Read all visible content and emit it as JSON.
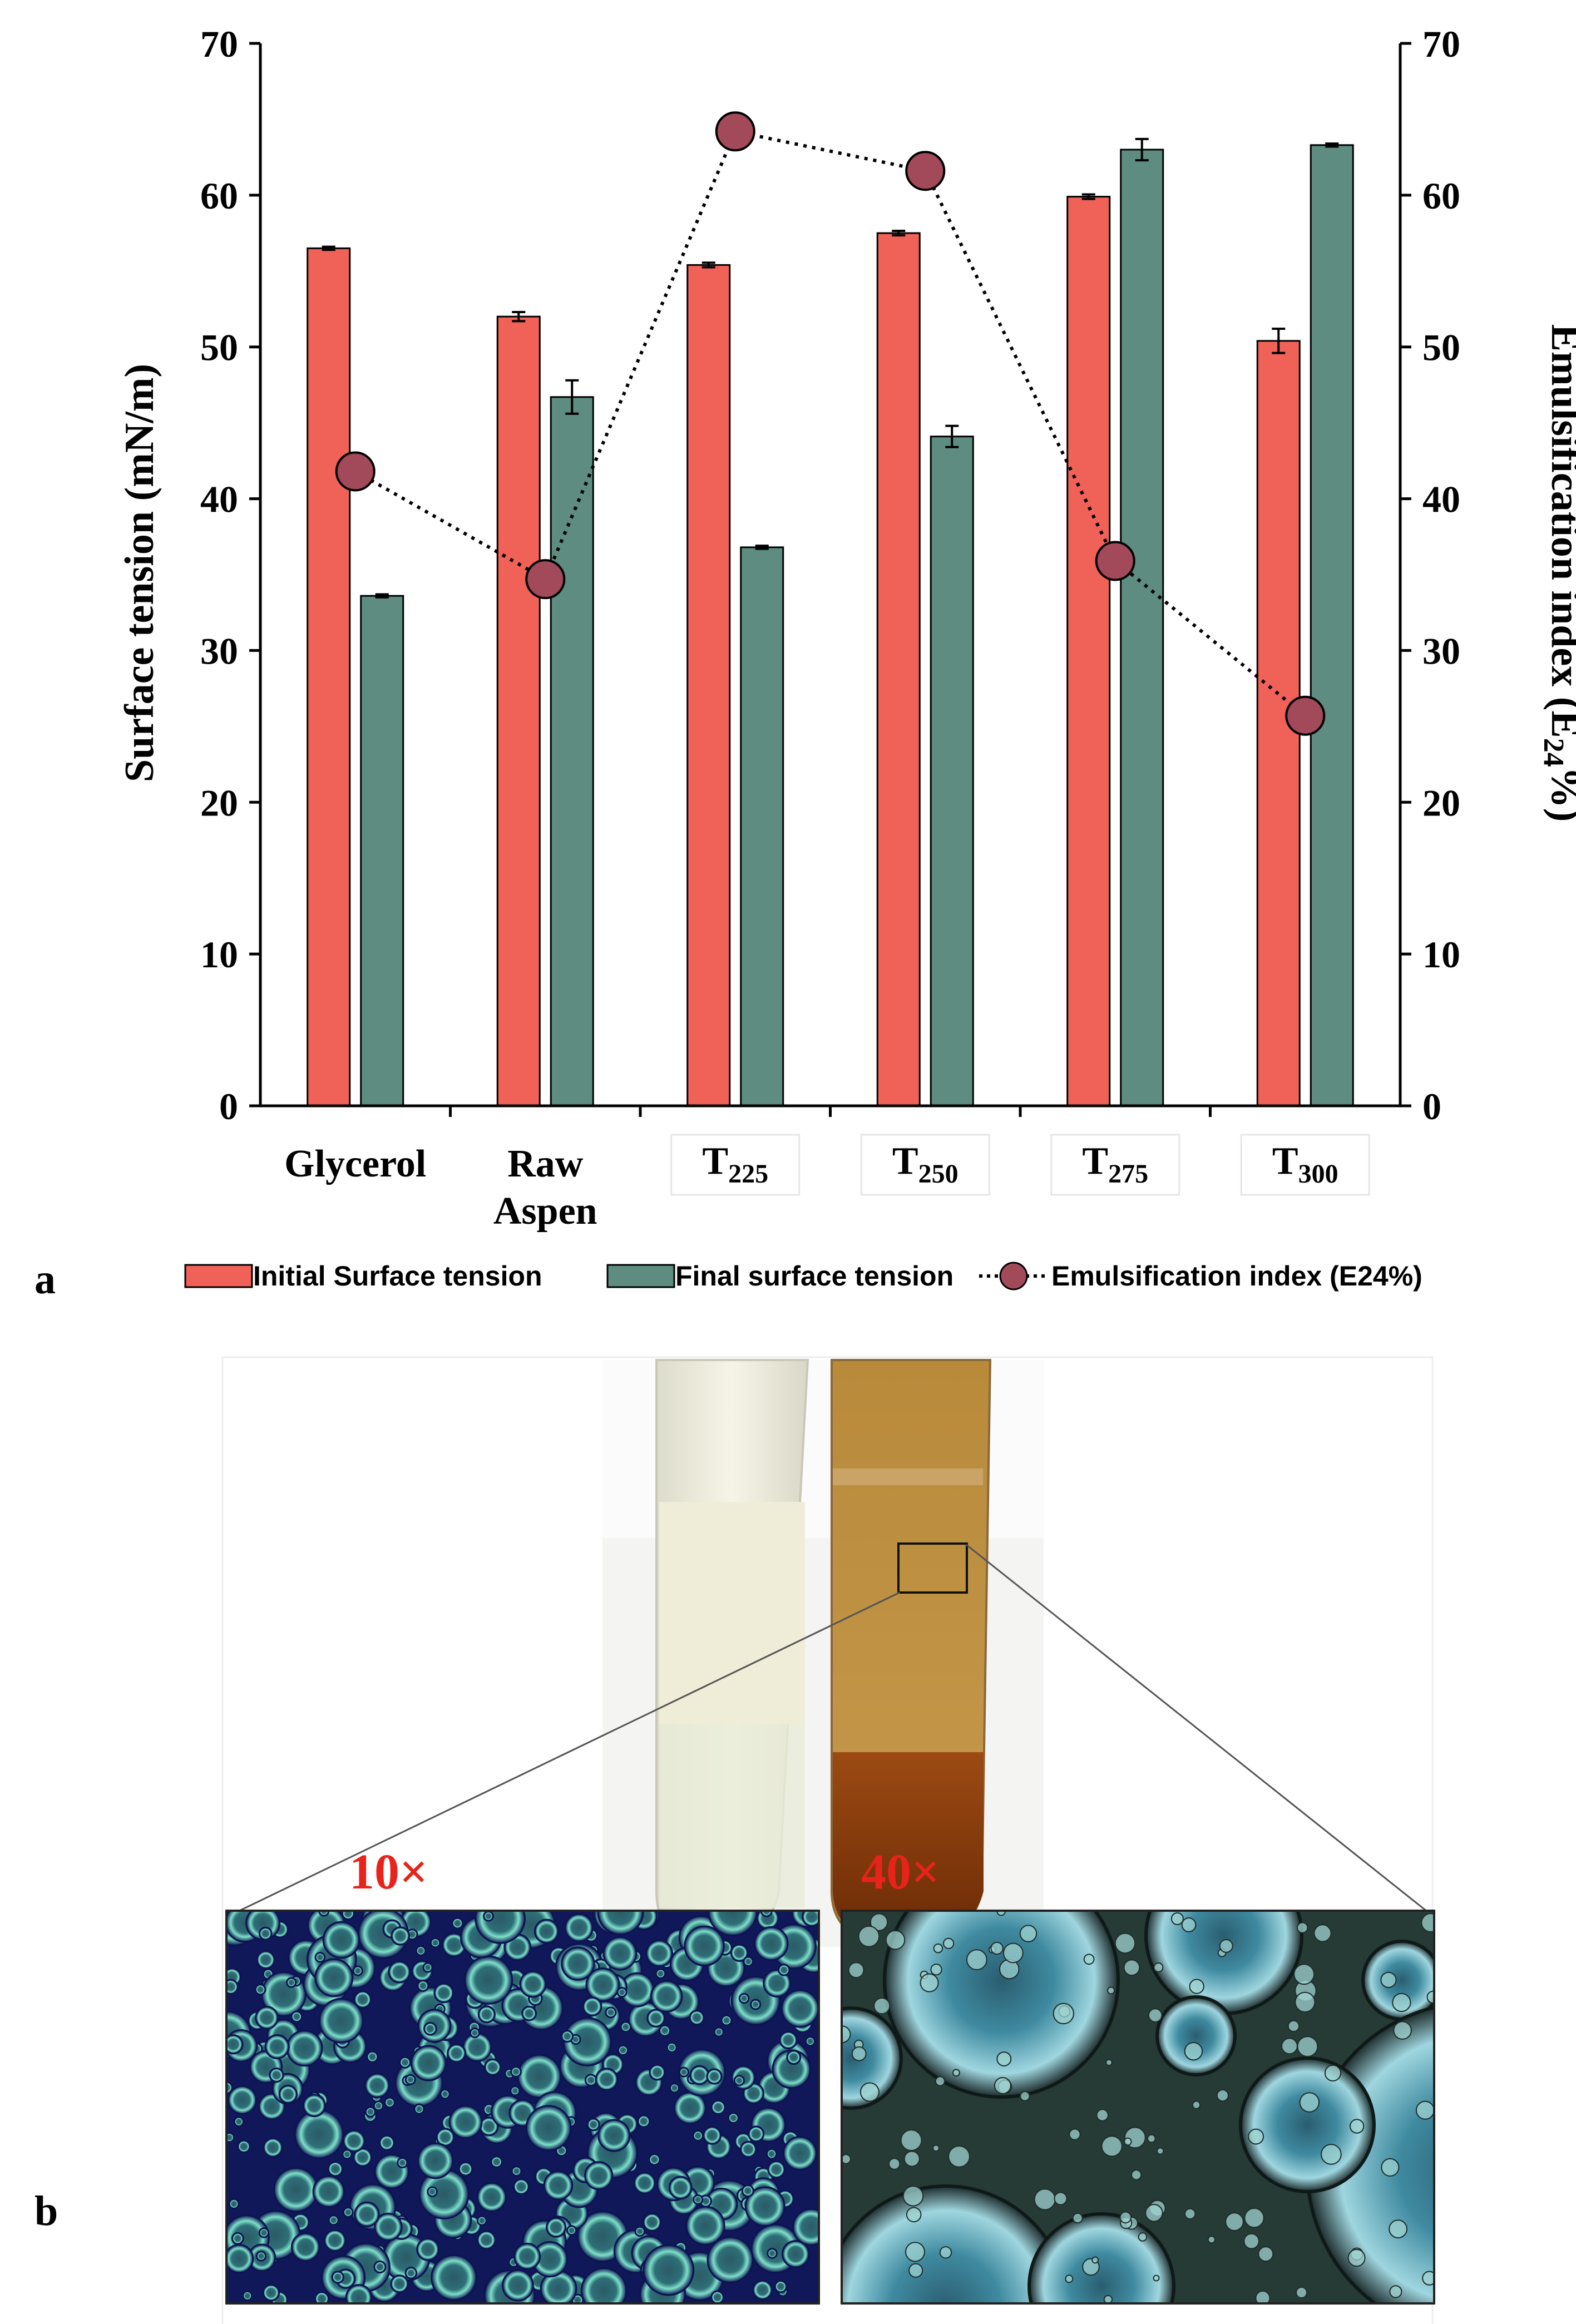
{
  "panel_labels": {
    "a": "a",
    "b": "b"
  },
  "chart_data": {
    "type": "bar",
    "categories": [
      "Glycerol",
      "Raw Aspen",
      "T225",
      "T250",
      "T275",
      "T300"
    ],
    "category_labels": [
      {
        "line1": "Glycerol",
        "line2": ""
      },
      {
        "line1": "Raw",
        "line2": "Aspen"
      },
      {
        "base": "T",
        "sub": "225"
      },
      {
        "base": "T",
        "sub": "250"
      },
      {
        "base": "T",
        "sub": "275"
      },
      {
        "base": "T",
        "sub": "300"
      }
    ],
    "series": [
      {
        "name": "Initial Surface tension",
        "kind": "bar",
        "axis": "left",
        "color": "#F06257",
        "values": [
          56.5,
          52.0,
          55.4,
          57.5,
          59.9,
          50.4
        ],
        "errors": [
          0.1,
          0.3,
          0.15,
          0.15,
          0.15,
          0.8
        ]
      },
      {
        "name": "Final surface tension",
        "kind": "bar",
        "axis": "left",
        "color": "#5E8C80",
        "values": [
          33.6,
          46.7,
          36.8,
          44.1,
          63.0,
          63.3
        ],
        "errors": [
          0.1,
          1.1,
          0.1,
          0.7,
          0.7,
          0.1
        ]
      },
      {
        "name": "Emulsification index (E24%)",
        "kind": "line-dotted",
        "axis": "right",
        "color": "#A24A5A",
        "values": [
          41.8,
          34.7,
          64.2,
          61.6,
          35.9,
          25.7
        ]
      }
    ],
    "ylabel": "Surface tension (mN/m)",
    "y2label": {
      "main": "Emulsification index (E",
      "sub": "24",
      "tail": "%)"
    },
    "ylim": [
      0,
      70
    ],
    "y2lim": [
      0,
      70
    ],
    "yticks": [
      0,
      10,
      20,
      30,
      40,
      50,
      60,
      70
    ],
    "legend": [
      {
        "label": "Initial Surface tension"
      },
      {
        "label": "Final surface tension"
      },
      {
        "label": "Emulsification index (E24%)"
      }
    ],
    "legend_position": "bottom",
    "grid": false
  },
  "photo_panel": {
    "magnification_left": "10×",
    "magnification_right": "40×",
    "label_color": "#E8231B"
  }
}
